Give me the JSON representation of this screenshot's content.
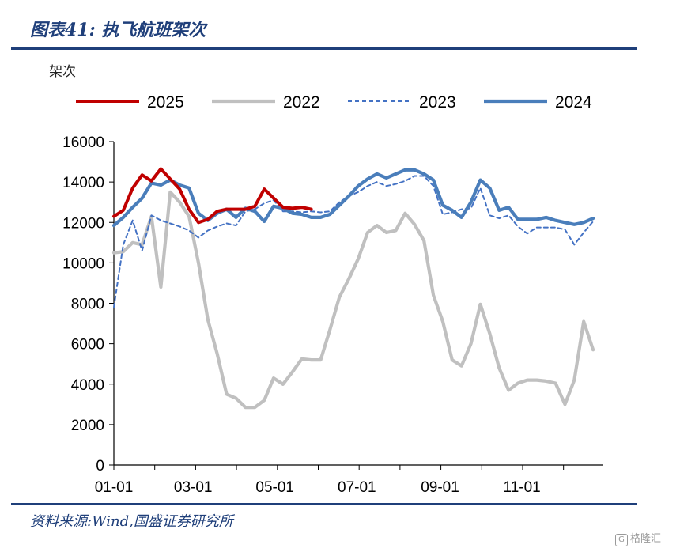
{
  "figure": {
    "title": "图表41:  执飞航班架次",
    "source": "资料来源:Wind,国盛证券研究所",
    "watermark": "格隆汇"
  },
  "chart_data": {
    "type": "line",
    "title": "",
    "ylabel": "架次",
    "xlabel": "",
    "ylim": [
      0,
      16000
    ],
    "yticks": [
      0,
      2000,
      4000,
      6000,
      8000,
      10000,
      12000,
      14000,
      16000
    ],
    "xlim": [
      0,
      52
    ],
    "xticks": [
      {
        "label": "01-01",
        "week": 0
      },
      {
        "label": "03-01",
        "week": 8.43
      },
      {
        "label": "05-01",
        "week": 17.14
      },
      {
        "label": "07-01",
        "week": 25.86
      },
      {
        "label": "09-01",
        "week": 34.71
      },
      {
        "label": "11-01",
        "week": 43.43
      }
    ],
    "legend_position": "top",
    "grid": false,
    "series": [
      {
        "name": "2025",
        "color": "#c00000",
        "style": "solid",
        "x": [
          0,
          1,
          2,
          3,
          4,
          5,
          6,
          7,
          8,
          9,
          10,
          11,
          12,
          13,
          14,
          15,
          16,
          17,
          18,
          19,
          20,
          21
        ],
        "values": [
          12300,
          12600,
          13700,
          14350,
          14050,
          14650,
          14150,
          13650,
          12650,
          12000,
          12150,
          12550,
          12650,
          12650,
          12650,
          12800,
          13650,
          13200,
          12750,
          12700,
          12750,
          12650
        ]
      },
      {
        "name": "2022",
        "color": "#c0c0c0",
        "style": "solid",
        "x": [
          0,
          1,
          2,
          3,
          4,
          5,
          6,
          7,
          8,
          9,
          10,
          11,
          12,
          13,
          14,
          15,
          16,
          17,
          18,
          19,
          20,
          21,
          22,
          23,
          24,
          25,
          26,
          27,
          28,
          29,
          30,
          31,
          32,
          33,
          34,
          35,
          36,
          37,
          38,
          39,
          40,
          41,
          42,
          43,
          44,
          45,
          46,
          47,
          48,
          49,
          50,
          51
        ],
        "values": [
          10500,
          10550,
          11000,
          10900,
          12300,
          8800,
          13500,
          13000,
          12300,
          10000,
          7200,
          5500,
          3500,
          3300,
          2850,
          2850,
          3200,
          4300,
          4000,
          4600,
          5250,
          5200,
          5200,
          6700,
          8300,
          9200,
          10200,
          11500,
          11850,
          11500,
          11600,
          12450,
          11900,
          11100,
          8400,
          7100,
          5200,
          4900,
          6000,
          7950,
          6500,
          4800,
          3700,
          4050,
          4200,
          4200,
          4150,
          4050,
          3000,
          4200,
          7100,
          5700
        ]
      },
      {
        "name": "2023",
        "color": "#4472c4",
        "style": "dashed",
        "x": [
          0,
          1,
          2,
          3,
          4,
          5,
          6,
          7,
          8,
          9,
          10,
          11,
          12,
          13,
          14,
          15,
          16,
          17,
          18,
          19,
          20,
          21,
          22,
          23,
          24,
          25,
          26,
          27,
          28,
          29,
          30,
          31,
          32,
          33,
          34,
          35,
          36,
          37,
          38,
          39,
          40,
          41,
          42,
          43,
          44,
          45,
          46,
          47,
          48,
          49,
          50,
          51
        ],
        "values": [
          7800,
          10900,
          12100,
          10600,
          12350,
          12100,
          11950,
          11800,
          11600,
          11250,
          11600,
          11800,
          11950,
          11850,
          12550,
          12650,
          12950,
          13100,
          12550,
          12550,
          12500,
          12550,
          12500,
          12550,
          13000,
          13300,
          13500,
          13800,
          14000,
          13800,
          13900,
          14050,
          14300,
          14300,
          13800,
          12400,
          12500,
          12650,
          12700,
          13700,
          12350,
          12200,
          12350,
          11800,
          11450,
          11750,
          11750,
          11750,
          11650,
          10900,
          11500,
          12050
        ]
      },
      {
        "name": "2024",
        "color": "#4a7ebb",
        "style": "solid-thick",
        "x": [
          0,
          1,
          2,
          3,
          4,
          5,
          6,
          7,
          8,
          9,
          10,
          11,
          12,
          13,
          14,
          15,
          16,
          17,
          18,
          19,
          20,
          21,
          22,
          23,
          24,
          25,
          26,
          27,
          28,
          29,
          30,
          31,
          32,
          33,
          34,
          35,
          36,
          37,
          38,
          39,
          40,
          41,
          42,
          43,
          44,
          45,
          46,
          47,
          48,
          49,
          50,
          51
        ],
        "values": [
          11850,
          12250,
          12750,
          13200,
          13950,
          13850,
          14100,
          13850,
          13700,
          12450,
          12100,
          12450,
          12650,
          12250,
          12700,
          12550,
          12050,
          12800,
          12700,
          12450,
          12400,
          12250,
          12250,
          12400,
          12850,
          13300,
          13800,
          14150,
          14400,
          14200,
          14400,
          14600,
          14600,
          14400,
          14100,
          12850,
          12600,
          12250,
          13000,
          14100,
          13700,
          12600,
          12750,
          12150,
          12150,
          12150,
          12250,
          12100,
          12000,
          11900,
          12000,
          12200
        ]
      }
    ]
  }
}
